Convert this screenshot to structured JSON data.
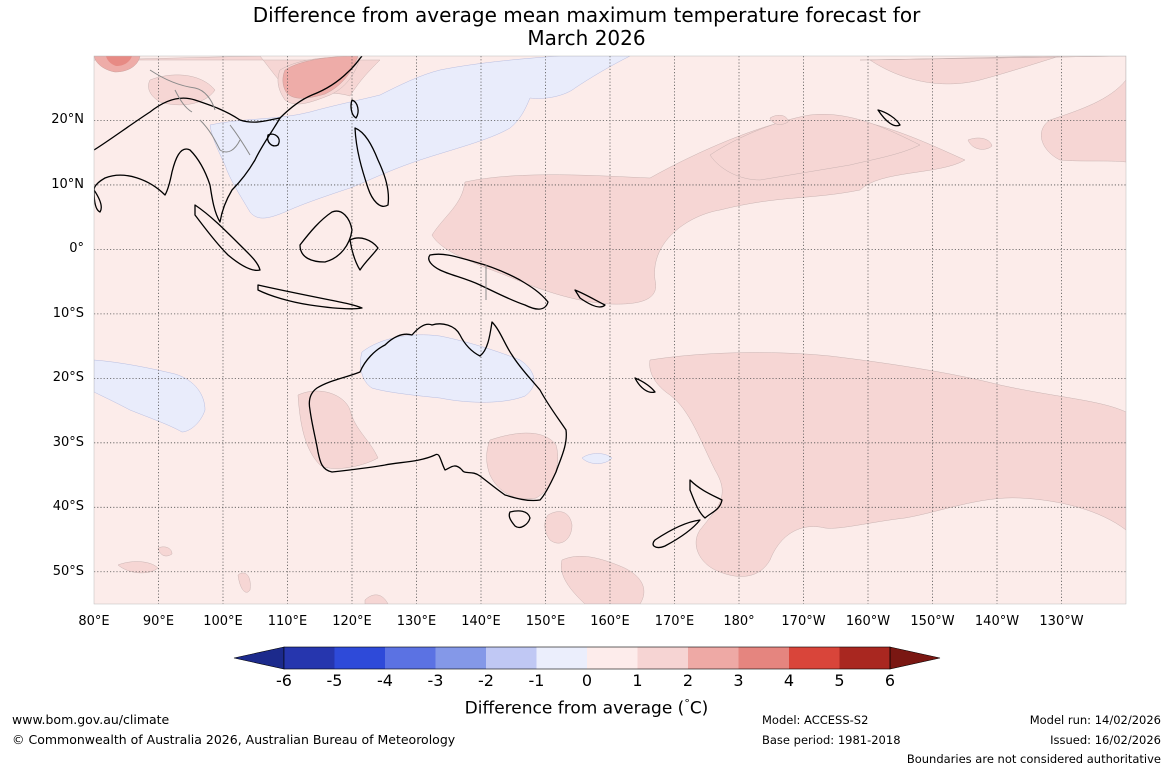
{
  "title": {
    "line1": "Difference from average mean maximum temperature forecast for",
    "line2": "March 2026"
  },
  "map": {
    "type": "choropleth-anomaly",
    "lon_range_deg_east": [
      80,
      240
    ],
    "lat_range": [
      -55,
      30
    ],
    "lon_labels": [
      "80°E",
      "90°E",
      "100°E",
      "110°E",
      "120°E",
      "130°E",
      "140°E",
      "150°E",
      "160°E",
      "170°E",
      "180°",
      "170°W",
      "160°W",
      "150°W",
      "140°W",
      "130°W"
    ],
    "lat_labels": [
      "20°N",
      "10°N",
      "0°",
      "10°S",
      "20°S",
      "30°S",
      "40°S",
      "50°S"
    ],
    "grid": true
  },
  "colorbar": {
    "ticks": [
      "-6",
      "-5",
      "-4",
      "-3",
      "-2",
      "-1",
      "0",
      "1",
      "2",
      "3",
      "4",
      "5",
      "6"
    ],
    "colors": [
      "#1c2a8c",
      "#2636ae",
      "#2e4ad9",
      "#5b72e3",
      "#8498e8",
      "#c0c8f4",
      "#ebeefc",
      "#fdeceb",
      "#f6d4d3",
      "#eea9a5",
      "#e5857f",
      "#d9453a",
      "#a92720",
      "#7a1712"
    ],
    "label": "Difference from average (°C)",
    "label_main": "Difference from average (",
    "label_unit": "°",
    "label_unit_c": "C)"
  },
  "colors": {
    "band_0_1": "#fcecea",
    "band_1_2": "#f6d6d4",
    "band_2_3": "#eeaca8",
    "band_3_4": "#e78a84",
    "band_m1_0": "#e9ecfb"
  },
  "footer": {
    "website": "www.bom.gov.au/climate",
    "copyright": "© Commonwealth of Australia 2026, Australian Bureau of Meteorology",
    "model": "Model: ACCESS-S2",
    "base_period": "Base period: 1981-2018",
    "model_run": "Model run: 14/02/2026",
    "issued": "Issued: 16/02/2026",
    "disclaimer": "Boundaries are not considered authoritative"
  }
}
